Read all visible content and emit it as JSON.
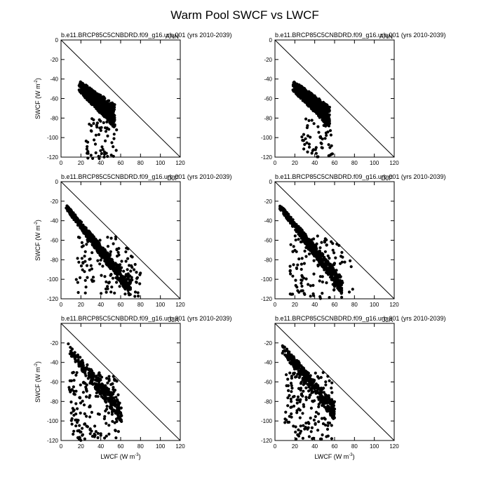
{
  "figure": {
    "title": "Warm Pool SWCF vs LWCF"
  },
  "chart_data": [
    {
      "type": "scatter",
      "panel_title": "b.e11.BRCP85C5CNBDRD.f09_g16.urb.001 (yrs 2010-2039)",
      "season": "ANN",
      "xlabel": "",
      "ylabel": "SWCF (W m-2)",
      "xlim": [
        0,
        120
      ],
      "ylim": [
        -120,
        0
      ],
      "xticks": [
        0,
        20,
        40,
        60,
        80,
        100,
        120
      ],
      "yticks": [
        0,
        -20,
        -40,
        -60,
        -80,
        -100,
        -120
      ],
      "reference_line": [
        [
          0,
          0
        ],
        [
          120,
          -120
        ]
      ],
      "cloud": {
        "x0": 18,
        "x1": 54,
        "y0_upper": -41,
        "y1_upper": -66,
        "y0_lower": -53,
        "y1_lower": -90,
        "count": 650
      },
      "tail": {
        "x_min": 25,
        "x_max": 56,
        "y_min": -122,
        "y_max": -80,
        "count": 60
      }
    },
    {
      "type": "scatter",
      "panel_title": "b.e11.BRCP85C5CNBDRD.f09_g16.urb.001 (yrs 2010-2039)",
      "season": "ANN",
      "xlabel": "",
      "ylabel": "",
      "xlim": [
        0,
        120
      ],
      "ylim": [
        -120,
        0
      ],
      "xticks": [
        0,
        20,
        40,
        60,
        80,
        100,
        120
      ],
      "yticks": [
        0,
        -20,
        -40,
        -60,
        -80,
        -100,
        -120
      ],
      "reference_line": [
        [
          0,
          0
        ],
        [
          120,
          -120
        ]
      ],
      "cloud": {
        "x0": 18,
        "x1": 55,
        "y0_upper": -41,
        "y1_upper": -68,
        "y0_lower": -52,
        "y1_lower": -90,
        "count": 650
      },
      "tail": {
        "x_min": 27,
        "x_max": 58,
        "y_min": -120,
        "y_max": -80,
        "count": 55
      }
    },
    {
      "type": "scatter",
      "panel_title": "b.e11.BRCP85C5CNBDRD.f09_g16.urb.001 (yrs 2010-2039)",
      "season": "DJF",
      "xlabel": "",
      "ylabel": "SWCF (W m-2)",
      "xlim": [
        0,
        120
      ],
      "ylim": [
        -120,
        0
      ],
      "xticks": [
        0,
        20,
        40,
        60,
        80,
        100,
        120
      ],
      "yticks": [
        0,
        -20,
        -40,
        -60,
        -80,
        -100,
        -120
      ],
      "reference_line": [
        [
          0,
          0
        ],
        [
          120,
          -120
        ]
      ],
      "cloud": {
        "x0": 5,
        "x1": 70,
        "y0_upper": -23,
        "y1_upper": -100,
        "y0_lower": -28,
        "y1_lower": -118,
        "count": 550
      },
      "tail": {
        "x_min": 15,
        "x_max": 80,
        "y_min": -120,
        "y_max": -55,
        "count": 140
      }
    },
    {
      "type": "scatter",
      "panel_title": "b.e11.BRCP85C5CNBDRD.f09_g16.urb.001 (yrs 2010-2039)",
      "season": "DJF",
      "xlabel": "",
      "ylabel": "",
      "xlim": [
        0,
        120
      ],
      "ylim": [
        -120,
        0
      ],
      "xticks": [
        0,
        20,
        40,
        60,
        80,
        100,
        120
      ],
      "yticks": [
        0,
        -20,
        -40,
        -60,
        -80,
        -100,
        -120
      ],
      "reference_line": [
        [
          0,
          0
        ],
        [
          120,
          -120
        ]
      ],
      "cloud": {
        "x0": 5,
        "x1": 68,
        "y0_upper": -23,
        "y1_upper": -98,
        "y0_lower": -28,
        "y1_lower": -116,
        "count": 550
      },
      "tail": {
        "x_min": 15,
        "x_max": 80,
        "y_min": -120,
        "y_max": -55,
        "count": 140
      }
    },
    {
      "type": "scatter",
      "panel_title": "b.e11.BRCP85C5CNBDRD.f09_g16.urb.001 (yrs 2010-2039)",
      "season": "JJA",
      "xlabel": "LWCF (W m-3)",
      "ylabel": "SWCF (W m-2)",
      "xlim": [
        0,
        120
      ],
      "ylim": [
        -120,
        0
      ],
      "xticks": [
        0,
        20,
        40,
        60,
        80,
        100,
        120
      ],
      "yticks": [
        -20,
        -40,
        -60,
        -80,
        -100,
        -120
      ],
      "reference_line": [
        [
          0,
          0
        ],
        [
          120,
          -120
        ]
      ],
      "cloud": {
        "x0": 7,
        "x1": 61,
        "y0_upper": -20,
        "y1_upper": -82,
        "y0_lower": -30,
        "y1_lower": -102,
        "count": 300
      },
      "tail": {
        "x_min": 8,
        "x_max": 58,
        "y_min": -120,
        "y_max": -50,
        "count": 170
      }
    },
    {
      "type": "scatter",
      "panel_title": "b.e11.BRCP85C5CNBDRD.f09_g16.urb.001 (yrs 2010-2039)",
      "season": "JJA",
      "xlabel": "LWCF (W m-3)",
      "ylabel": "",
      "xlim": [
        0,
        120
      ],
      "ylim": [
        -120,
        0
      ],
      "xticks": [
        0,
        20,
        40,
        60,
        80,
        100,
        120
      ],
      "yticks": [
        -20,
        -40,
        -60,
        -80,
        -100,
        -120
      ],
      "reference_line": [
        [
          0,
          0
        ],
        [
          120,
          -120
        ]
      ],
      "cloud": {
        "x0": 7,
        "x1": 60,
        "y0_upper": -20,
        "y1_upper": -80,
        "y0_lower": -30,
        "y1_lower": -100,
        "count": 300
      },
      "tail": {
        "x_min": 10,
        "x_max": 58,
        "y_min": -120,
        "y_max": -50,
        "count": 170
      }
    }
  ]
}
